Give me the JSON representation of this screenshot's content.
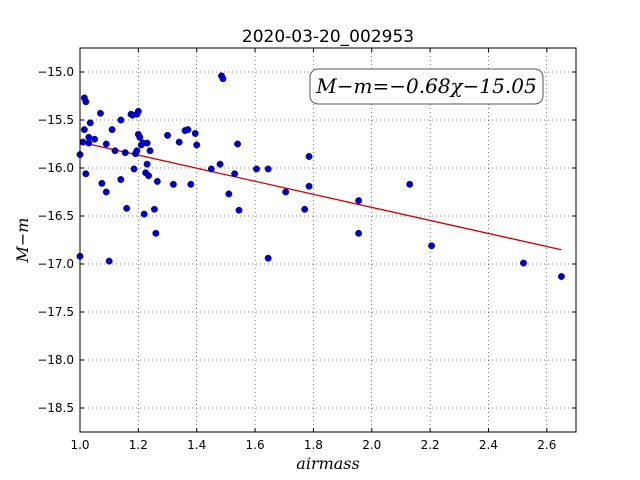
{
  "chart_data": {
    "type": "scatter",
    "title": "2020-03-20_002953",
    "xlabel": "airmass",
    "ylabel": "M−m",
    "xlim": [
      1.0,
      2.7
    ],
    "ylim": [
      -18.75,
      -14.75
    ],
    "y_inverted": true,
    "x_ticks": [
      1.0,
      1.2,
      1.4,
      1.6,
      1.8,
      2.0,
      2.2,
      2.4,
      2.6
    ],
    "x_tick_labels": [
      "1.0",
      "1.2",
      "1.4",
      "1.6",
      "1.8",
      "2.0",
      "2.2",
      "2.4",
      "2.6"
    ],
    "y_ticks": [
      -15.0,
      -15.5,
      -16.0,
      -16.5,
      -17.0,
      -17.5,
      -18.0,
      -18.5
    ],
    "y_tick_labels": [
      "−15.0",
      "−15.5",
      "−16.0",
      "−16.5",
      "−17.0",
      "−17.5",
      "−18.0",
      "−18.5"
    ],
    "grid": true,
    "point_color": "#0000cc",
    "fit_color": "#cc0000",
    "annotation": "M−m=−0.68χ−15.05",
    "fit_line": {
      "slope": -0.68,
      "intercept": -15.05,
      "x_range": [
        1.02,
        2.65
      ]
    },
    "points": [
      [
        1.0,
        -15.86
      ],
      [
        1.0,
        -16.92
      ],
      [
        1.01,
        -15.73
      ],
      [
        1.015,
        -15.27
      ],
      [
        1.015,
        -15.6
      ],
      [
        1.02,
        -15.31
      ],
      [
        1.02,
        -16.06
      ],
      [
        1.03,
        -15.74
      ],
      [
        1.03,
        -15.68
      ],
      [
        1.035,
        -15.53
      ],
      [
        1.05,
        -15.7
      ],
      [
        1.07,
        -15.43
      ],
      [
        1.075,
        -16.16
      ],
      [
        1.09,
        -15.75
      ],
      [
        1.09,
        -16.25
      ],
      [
        1.1,
        -16.97
      ],
      [
        1.11,
        -15.6
      ],
      [
        1.12,
        -15.82
      ],
      [
        1.14,
        -15.5
      ],
      [
        1.14,
        -16.12
      ],
      [
        1.155,
        -15.84
      ],
      [
        1.16,
        -16.42
      ],
      [
        1.175,
        -15.44
      ],
      [
        1.18,
        -15.45
      ],
      [
        1.185,
        -16.01
      ],
      [
        1.19,
        -15.85
      ],
      [
        1.195,
        -15.44
      ],
      [
        1.195,
        -15.82
      ],
      [
        1.2,
        -15.41
      ],
      [
        1.2,
        -15.65
      ],
      [
        1.205,
        -15.68
      ],
      [
        1.21,
        -15.76
      ],
      [
        1.215,
        -15.74
      ],
      [
        1.22,
        -16.48
      ],
      [
        1.225,
        -16.05
      ],
      [
        1.23,
        -15.74
      ],
      [
        1.23,
        -15.96
      ],
      [
        1.235,
        -16.08
      ],
      [
        1.24,
        -15.82
      ],
      [
        1.255,
        -16.43
      ],
      [
        1.26,
        -16.68
      ],
      [
        1.265,
        -16.14
      ],
      [
        1.3,
        -15.66
      ],
      [
        1.32,
        -16.17
      ],
      [
        1.34,
        -15.73
      ],
      [
        1.36,
        -15.61
      ],
      [
        1.37,
        -15.6
      ],
      [
        1.38,
        -16.17
      ],
      [
        1.395,
        -15.64
      ],
      [
        1.4,
        -15.76
      ],
      [
        1.45,
        -16.01
      ],
      [
        1.48,
        -15.96
      ],
      [
        1.485,
        -15.04
      ],
      [
        1.49,
        -15.07
      ],
      [
        1.51,
        -16.27
      ],
      [
        1.53,
        -16.06
      ],
      [
        1.54,
        -15.75
      ],
      [
        1.545,
        -16.44
      ],
      [
        1.605,
        -16.01
      ],
      [
        1.645,
        -16.01
      ],
      [
        1.645,
        -16.94
      ],
      [
        1.705,
        -16.25
      ],
      [
        1.77,
        -16.43
      ],
      [
        1.785,
        -15.88
      ],
      [
        1.785,
        -16.19
      ],
      [
        1.955,
        -16.34
      ],
      [
        1.955,
        -16.68
      ],
      [
        2.13,
        -16.17
      ],
      [
        2.205,
        -16.81
      ],
      [
        2.52,
        -16.99
      ],
      [
        2.65,
        -17.13
      ]
    ]
  }
}
